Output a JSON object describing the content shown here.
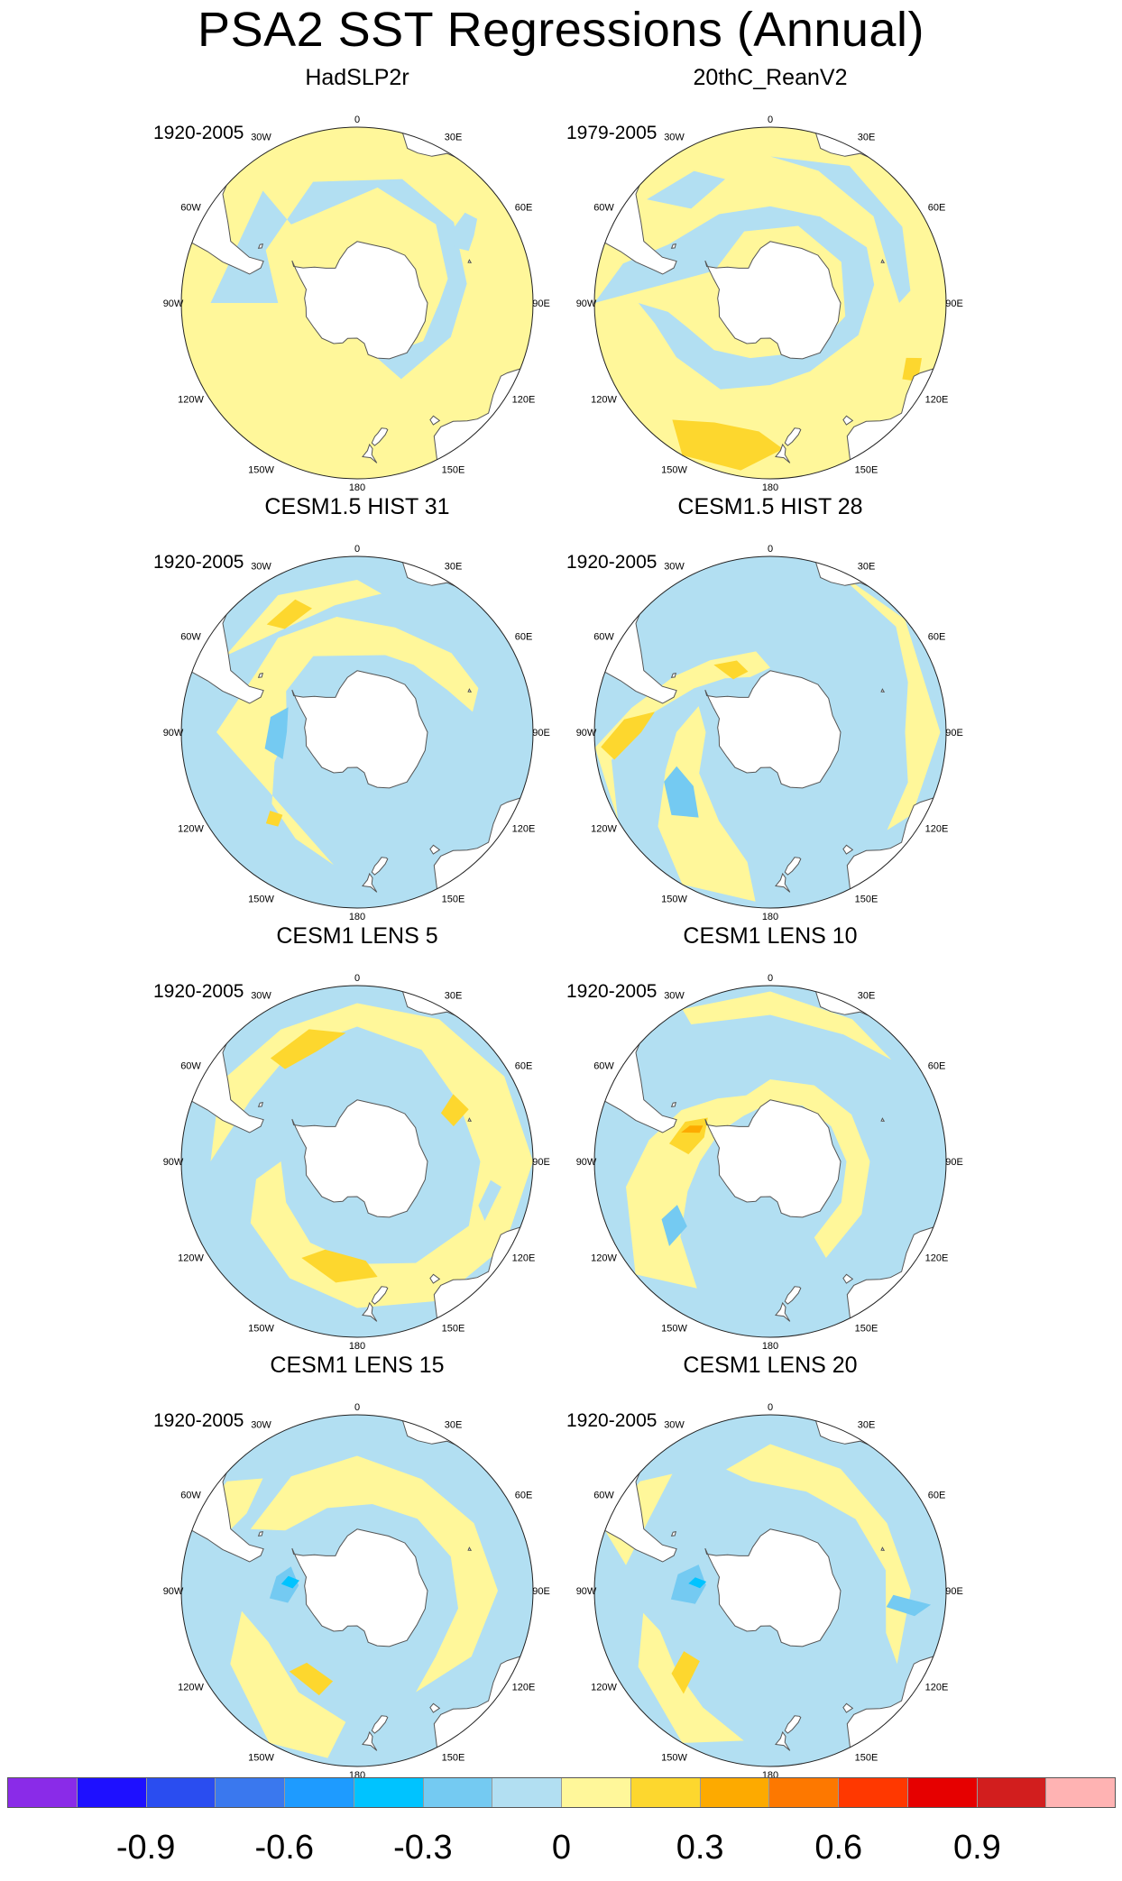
{
  "title": "PSA2 SST Regressions (Annual)",
  "panels": [
    {
      "title": "HadSLP2r",
      "period": "1920-2005",
      "scene": 0
    },
    {
      "title": "20thC_ReanV2",
      "period": "1979-2005",
      "scene": 1
    },
    {
      "title": "CESM1.5 HIST 31",
      "period": "1920-2005",
      "scene": 2
    },
    {
      "title": "CESM1.5 HIST 28",
      "period": "1920-2005",
      "scene": 3
    },
    {
      "title": "CESM1 LENS 5",
      "period": "1920-2005",
      "scene": 4
    },
    {
      "title": "CESM1 LENS 10",
      "period": "1920-2005",
      "scene": 5
    },
    {
      "title": "CESM1 LENS 15",
      "period": "1920-2005",
      "scene": 6
    },
    {
      "title": "CESM1 LENS 20",
      "period": "1920-2005",
      "scene": 7
    }
  ],
  "longitude_labels": [
    "0",
    "30E",
    "60E",
    "90E",
    "120E",
    "150E",
    "180",
    "150W",
    "120W",
    "90W",
    "60W",
    "30W"
  ],
  "colorbar": {
    "colors": [
      "#8a2be8",
      "#1e10ff",
      "#2a4df0",
      "#3a78ee",
      "#1e9bff",
      "#00c3ff",
      "#74caf2",
      "#b2dff2",
      "#fff79a",
      "#fdd72e",
      "#fdaa00",
      "#fd7800",
      "#ff3800",
      "#e60000",
      "#d21e1e",
      "#ffb3b3"
    ],
    "tick_labels": [
      "-0.9",
      "-0.6",
      "-0.3",
      "0",
      "0.3",
      "0.6",
      "0.9"
    ]
  },
  "colors": {
    "land": "#ffffff",
    "coast": "#555555",
    "yellow": "#fff79a",
    "lightblue": "#b2dff2"
  }
}
